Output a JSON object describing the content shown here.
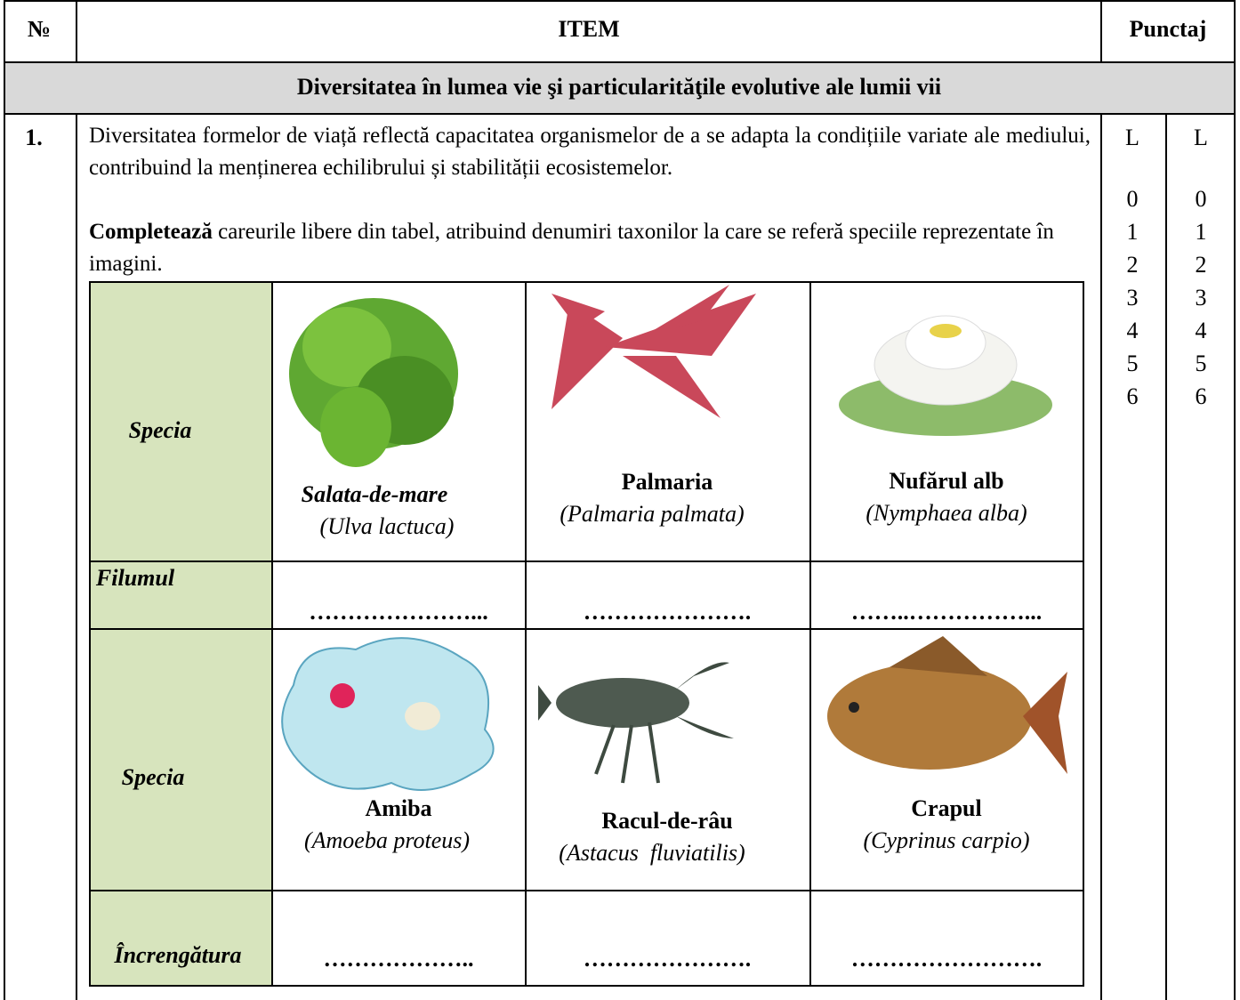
{
  "header": {
    "number": "№",
    "item": "ITEM",
    "score": "Punctaj"
  },
  "section": "Diversitatea în lumea vie şi particularităţile evolutive ale lumii vii",
  "question": {
    "number": "1.",
    "paragraph": "Diversitatea formelor de viață reflectă capacitatea organismelor de a se adapta la condițiile variate ale mediului, contribuind la menținerea echilibrului și stabilității ecosistemelor.",
    "instruction_bold": "Completează",
    "instruction_rest": "careurile libere din tabel, atribuind denumiri taxonilor la care se referă speciile reprezentate în imagini.",
    "score_columns": [
      {
        "label": "L",
        "values": [
          0,
          1,
          2,
          3,
          4,
          5,
          6
        ]
      },
      {
        "label": "L",
        "values": [
          0,
          1,
          2,
          3,
          4,
          5,
          6
        ]
      }
    ],
    "table": {
      "rows": [
        {
          "label": "Specia",
          "cells": [
            {
              "name": "Salata-de-mare",
              "latin": "(Ulva lactuca)"
            },
            {
              "name": "Palmaria",
              "latin": "(Palmaria palmata)"
            },
            {
              "name": "Nufărul alb",
              "latin": "(Nymphaea alba)"
            }
          ]
        },
        {
          "label": "Filumul",
          "cells": [
            "…………………...",
            "………………….",
            "……..……………..."
          ]
        },
        {
          "label": "Specia",
          "cells": [
            {
              "name": "Amiba",
              "latin": "(Amoeba proteus)"
            },
            {
              "name": "Racul-de-râu",
              "latin": "(Astacus  fluviatilis)"
            },
            {
              "name": "Crapul",
              "latin": "(Cyprinus carpio)"
            }
          ]
        },
        {
          "label": "Încrengătura",
          "cells": [
            "………………..",
            "………………….",
            "……………………."
          ]
        }
      ]
    }
  }
}
